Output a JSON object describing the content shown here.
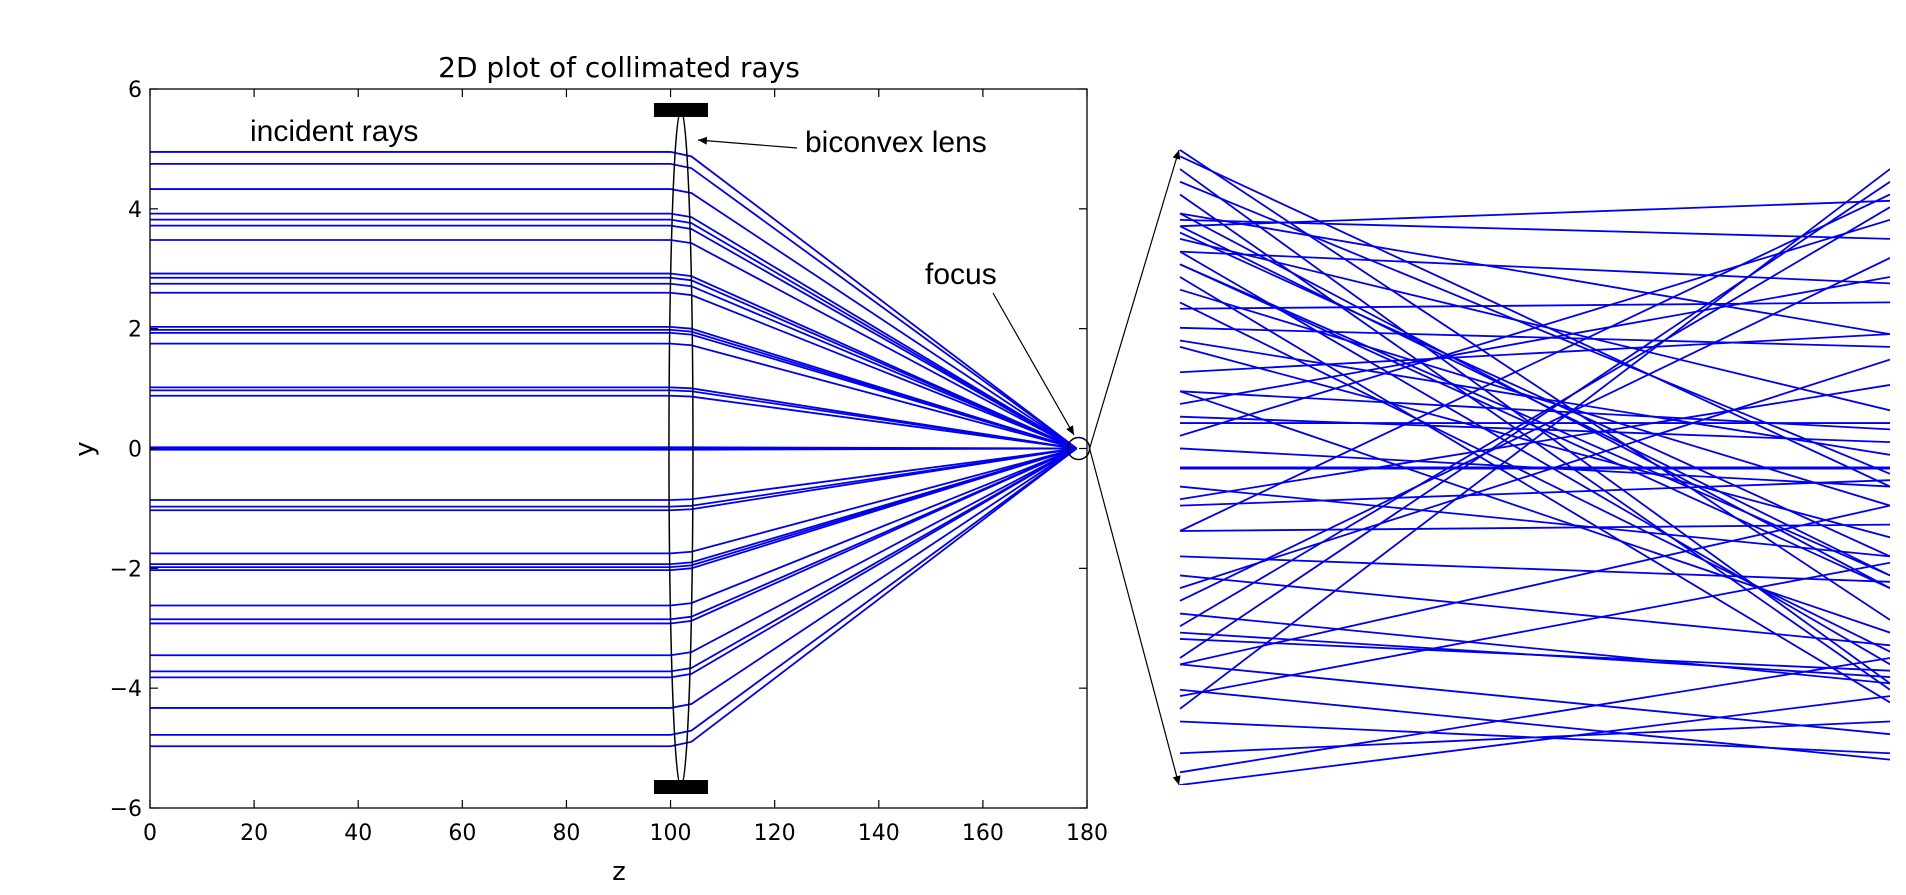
{
  "chart_data": {
    "type": "line",
    "title": "2D plot of collimated rays",
    "xlabel": "z",
    "ylabel": "y",
    "xlim": [
      0,
      180
    ],
    "ylim": [
      -6,
      6
    ],
    "xticks": [
      0,
      20,
      40,
      60,
      80,
      100,
      120,
      140,
      160,
      180
    ],
    "yticks": [
      6,
      4,
      2,
      0,
      -2,
      -4,
      -6
    ],
    "ytick_labels": [
      "6",
      "4",
      "2",
      "0",
      "−2",
      "−4",
      "−6"
    ],
    "grid": false,
    "ray_color": "#0000ee",
    "lens": {
      "z_center": 102,
      "aperture": 5.65
    },
    "focus": {
      "z": 178,
      "y": 0
    },
    "incident_ray_heights": [
      4.95,
      4.75,
      4.33,
      3.92,
      3.82,
      3.72,
      3.48,
      2.92,
      2.85,
      2.75,
      2.6,
      2.03,
      1.98,
      1.93,
      1.75,
      1.02,
      0.97,
      0.88,
      0.02,
      0,
      -0.02,
      -0.86,
      -0.97,
      -1.03,
      -1.75,
      -1.93,
      -1.98,
      -2.03,
      -2.62,
      -2.85,
      -2.92,
      -3.45,
      -3.72,
      -3.82,
      -4.33,
      -4.78,
      -4.97
    ],
    "inset_lines": [
      [
        0.12,
        0.97
      ],
      [
        0.2,
        0.95
      ],
      [
        0.25,
        0.91
      ],
      [
        0.29,
        0.83
      ],
      [
        0.31,
        0.67
      ],
      [
        0.4,
        0.93
      ],
      [
        0.45,
        0.63
      ],
      [
        0.55,
        0.89
      ],
      [
        0.58,
        0.54
      ],
      [
        0.6,
        0.8
      ],
      [
        0.62,
        0.24
      ],
      [
        0.65,
        0.71
      ],
      [
        0.69,
        0.39
      ],
      [
        0.72,
        0.69
      ],
      [
        0.75,
        0.76
      ],
      [
        0.76,
        0.21
      ],
      [
        0.78,
        0.44
      ],
      [
        0.8,
        0.13
      ],
      [
        0.82,
        0.31
      ],
      [
        0.82,
        0.33
      ],
      [
        0.84,
        0.19
      ],
      [
        0.86,
        0.59
      ],
      [
        0.87,
        0.36
      ],
      [
        0.88,
        0.33
      ],
      [
        0.89,
        0.86
      ],
      [
        0.9,
        0.31
      ],
      [
        0.9,
        0.71
      ],
      [
        0.93,
        0.15
      ],
      [
        0.95,
        0.49
      ],
      [
        0.97,
        0.16
      ],
      [
        0.99,
        0.47
      ],
      [
        1.0,
        0.26
      ],
      [
        0.88,
        0.92
      ],
      [
        0.84,
        0.79
      ],
      [
        0.7,
        0.52
      ],
      [
        0.62,
        0.56
      ],
      [
        0.57,
        0.57
      ],
      [
        0.53,
        0.47
      ],
      [
        0.47,
        0.36
      ],
      [
        0.44,
        0.48
      ],
      [
        0.4,
        0.41
      ],
      [
        0.36,
        0.32
      ],
      [
        0.33,
        0.22
      ],
      [
        0.27,
        0.16
      ],
      [
        0.23,
        0.18
      ],
      [
        0.19,
        0.08
      ],
      [
        0.15,
        0.04
      ],
      [
        0.1,
        0.05
      ],
      [
        0.05,
        0.1
      ],
      [
        0.02,
        0.2
      ],
      [
        0.0,
        0.14
      ],
      [
        0.14,
        0.35
      ],
      [
        0.19,
        0.44
      ],
      [
        0.24,
        0.17
      ]
    ],
    "annotations": [
      {
        "text": "incident rays",
        "target": "incident"
      },
      {
        "text": "biconvex lens",
        "target": "lens"
      },
      {
        "text": "focus",
        "target": "focus"
      }
    ]
  },
  "inset_colors": {
    "axis": "#000000",
    "arrow": "#000000"
  }
}
